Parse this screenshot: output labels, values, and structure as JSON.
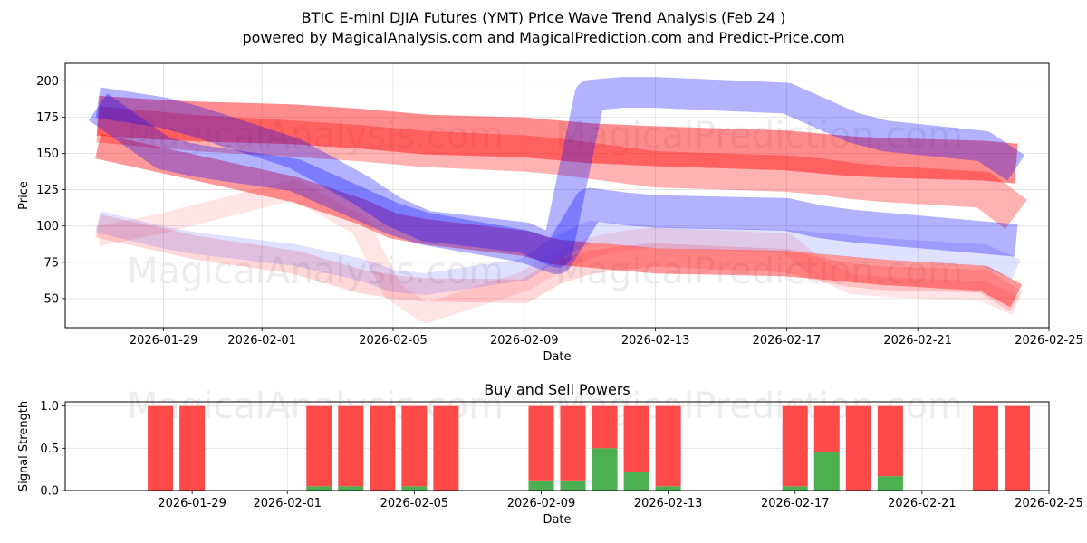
{
  "figure": {
    "title_line1": "BTIC E-mini DJIA Futures (YMT) Price Wave Trend Analysis (Feb 24 )",
    "title_line2": "powered by MagicalAnalysis.com and MagicalPrediction.com and Predict-Price.com",
    "watermarks": [
      "MagicalAnalysis.com",
      "MagicalPrediction.com"
    ]
  },
  "colors": {
    "red": "#ff0000",
    "blue": "#0000ff",
    "buy": "#4caf50",
    "sell": "#ff4a4a",
    "grid": "#e0e0e0"
  },
  "chart_data": [
    {
      "type": "area",
      "title": "",
      "xlabel": "Date",
      "ylabel": "Price",
      "xlim": [
        "2026-01-26",
        "2026-02-25"
      ],
      "ylim": [
        30,
        212
      ],
      "xticks": [
        "2026-01-29",
        "2026-02-01",
        "2026-02-05",
        "2026-02-09",
        "2026-02-13",
        "2026-02-17",
        "2026-02-21",
        "2026-02-25"
      ],
      "yticks": [
        50,
        75,
        100,
        125,
        150,
        175,
        200
      ],
      "grid": true,
      "x": [
        "2026-01-27",
        "2026-01-29",
        "2026-01-30",
        "2026-02-02",
        "2026-02-04",
        "2026-02-05",
        "2026-02-06",
        "2026-02-09",
        "2026-02-10",
        "2026-02-11",
        "2026-02-12",
        "2026-02-13",
        "2026-02-17",
        "2026-02-18",
        "2026-02-19",
        "2026-02-20",
        "2026-02-23",
        "2026-02-24"
      ],
      "series": [
        {
          "name": "red-wave-1",
          "color": "red",
          "opacity": 0.45,
          "width": 44,
          "values": [
            176,
            173,
            172,
            170,
            167,
            165,
            163,
            161,
            159,
            157,
            156,
            155,
            152,
            150,
            148,
            147,
            145,
            143
          ]
        },
        {
          "name": "red-wave-2",
          "color": "red",
          "opacity": 0.3,
          "width": 40,
          "values": [
            170,
            166,
            164,
            160,
            157,
            155,
            153,
            150,
            148,
            145,
            142,
            139,
            136,
            134,
            131,
            129,
            125,
            108
          ]
        },
        {
          "name": "red-wave-3",
          "color": "red",
          "opacity": 0.4,
          "width": 28,
          "values": [
            155,
            145,
            140,
            125,
            110,
            100,
            96,
            88,
            82,
            80,
            78,
            76,
            74,
            72,
            70,
            68,
            64,
            52
          ]
        },
        {
          "name": "red-wave-4",
          "color": "red",
          "opacity": 0.15,
          "width": 26,
          "values": [
            100,
            90,
            85,
            75,
            62,
            58,
            56,
            55,
            68,
            75,
            78,
            80,
            76,
            70,
            66,
            64,
            62,
            48
          ]
        },
        {
          "name": "red-wave-5",
          "color": "red",
          "opacity": 0.1,
          "width": 22,
          "values": [
            93,
            102,
            108,
            125,
            100,
            55,
            40,
            62,
            75,
            85,
            90,
            92,
            88,
            70,
            60,
            58,
            55,
            45
          ]
        },
        {
          "name": "blue-wave-1",
          "color": "blue",
          "opacity": 0.3,
          "width": 34,
          "values": [
            185,
            178,
            172,
            150,
            125,
            110,
            100,
            92,
            82,
            190,
            192,
            192,
            188,
            178,
            168,
            162,
            155,
            140
          ]
        },
        {
          "name": "blue-wave-2",
          "color": "blue",
          "opacity": 0.3,
          "width": 36,
          "values": [
            182,
            150,
            145,
            135,
            115,
            105,
            98,
            86,
            78,
            115,
            112,
            110,
            108,
            103,
            100,
            98,
            92,
            90
          ]
        },
        {
          "name": "blue-wave-3",
          "color": "blue",
          "opacity": 0.12,
          "width": 24,
          "values": [
            103,
            92,
            88,
            80,
            70,
            62,
            60,
            70,
            85,
            96,
            94,
            92,
            90,
            88,
            86,
            84,
            80,
            70
          ]
        }
      ]
    },
    {
      "type": "bar",
      "title": "Buy and Sell Powers",
      "xlabel": "Date",
      "ylabel": "Signal Strength",
      "xlim": [
        "2026-01-25",
        "2026-02-25"
      ],
      "ylim": [
        0,
        1.05
      ],
      "xticks": [
        "2026-01-29",
        "2026-02-01",
        "2026-02-05",
        "2026-02-09",
        "2026-02-13",
        "2026-02-17",
        "2026-02-21",
        "2026-02-25"
      ],
      "yticks": [
        0.0,
        0.5,
        1.0
      ],
      "grid": true,
      "x": [
        "2026-01-28",
        "2026-01-29",
        "2026-02-02",
        "2026-02-03",
        "2026-02-04",
        "2026-02-05",
        "2026-02-06",
        "2026-02-09",
        "2026-02-10",
        "2026-02-11",
        "2026-02-12",
        "2026-02-13",
        "2026-02-17",
        "2026-02-18",
        "2026-02-19",
        "2026-02-20",
        "2026-02-23",
        "2026-02-24"
      ],
      "series": [
        {
          "name": "Buy",
          "color": "buy",
          "values": [
            0,
            0,
            0.05,
            0.05,
            0,
            0.05,
            0,
            0.12,
            0.12,
            0.5,
            0.22,
            0.05,
            0.05,
            0.45,
            0,
            0.17,
            0,
            0
          ]
        },
        {
          "name": "Sell",
          "color": "sell",
          "values": [
            1,
            1,
            0.95,
            0.95,
            1,
            0.95,
            1,
            0.88,
            0.88,
            0.5,
            0.78,
            0.95,
            0.95,
            0.55,
            1,
            0.83,
            1,
            1
          ]
        }
      ]
    }
  ]
}
